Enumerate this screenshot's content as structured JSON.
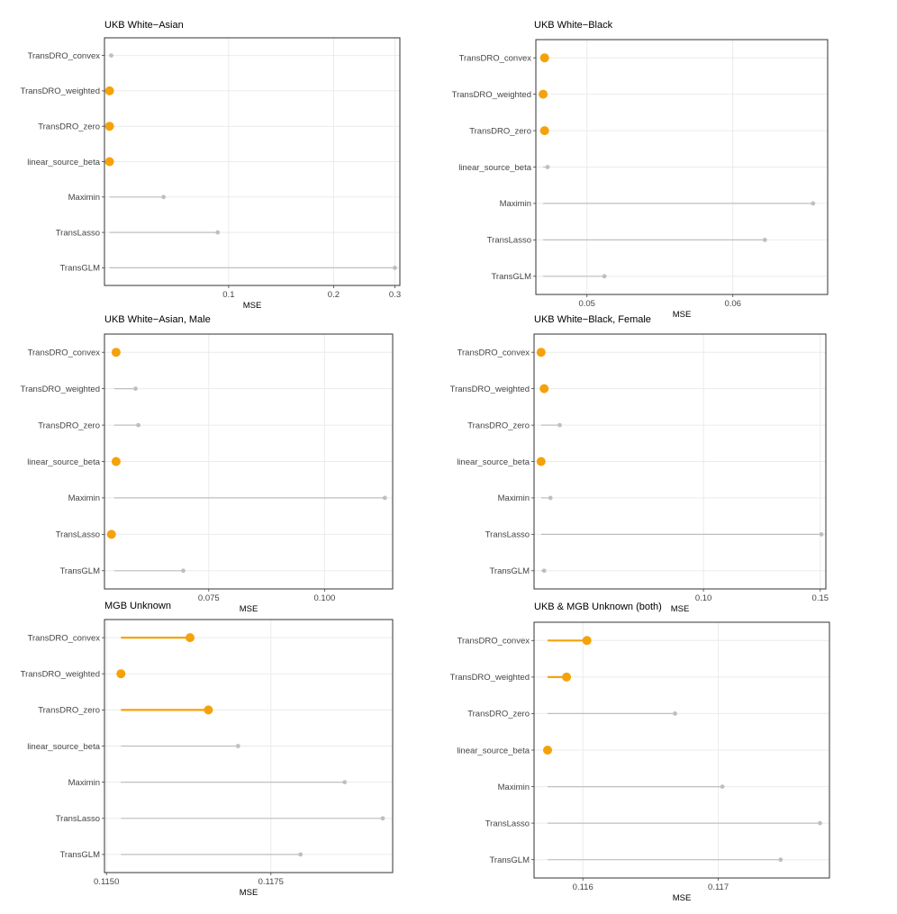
{
  "colors": {
    "highlight": "#f5a20a",
    "muted": "#bfbfbf",
    "grid": "#ebebeb",
    "frame": "#333333"
  },
  "chart_data": [
    {
      "type": "lollipop",
      "title": "UKB White−Asian",
      "xlabel": "MSE",
      "xscale": "log",
      "xlim": [
        0.044,
        0.31
      ],
      "xticks": [
        {
          "v": 0.1,
          "label": "0.1"
        },
        {
          "v": 0.2,
          "label": "0.2"
        },
        {
          "v": 0.3,
          "label": "0.3"
        }
      ],
      "baseline": 0.0455,
      "categories": [
        "TransDRO_convex",
        "TransDRO_weighted",
        "TransDRO_zero",
        "linear_source_beta",
        "Maximin",
        "TransLasso",
        "TransGLM"
      ],
      "values": [
        0.046,
        0.0455,
        0.0455,
        0.0455,
        0.065,
        0.093,
        0.3
      ],
      "highlight": [
        false,
        true,
        true,
        true,
        false,
        false,
        false
      ]
    },
    {
      "type": "lollipop",
      "title": "UKB White−Black",
      "xlabel": "MSE",
      "xscale": "linear",
      "xlim": [
        0.0465,
        0.0665
      ],
      "xticks": [
        {
          "v": 0.05,
          "label": "0.05"
        },
        {
          "v": 0.06,
          "label": "0.06"
        }
      ],
      "baseline": 0.047,
      "categories": [
        "TransDRO_convex",
        "TransDRO_weighted",
        "TransDRO_zero",
        "linear_source_beta",
        "Maximin",
        "TransLasso",
        "TransGLM"
      ],
      "values": [
        0.0471,
        0.047,
        0.0471,
        0.0473,
        0.0655,
        0.0622,
        0.0512
      ],
      "highlight": [
        true,
        true,
        true,
        false,
        false,
        false,
        false
      ]
    },
    {
      "type": "lollipop",
      "title": "UKB White−Asian, Male",
      "xlabel": "MSE",
      "xscale": "linear",
      "xlim": [
        0.0525,
        0.1147
      ],
      "xticks": [
        {
          "v": 0.075,
          "label": "0.075"
        },
        {
          "v": 0.1,
          "label": "0.100"
        }
      ],
      "baseline": 0.0546,
      "categories": [
        "TransDRO_convex",
        "TransDRO_weighted",
        "TransDRO_zero",
        "linear_source_beta",
        "Maximin",
        "TransLasso",
        "TransGLM"
      ],
      "values": [
        0.055,
        0.0592,
        0.0598,
        0.055,
        0.113,
        0.054,
        0.0695
      ],
      "highlight": [
        true,
        false,
        false,
        true,
        false,
        true,
        false
      ]
    },
    {
      "type": "lollipop",
      "title": "UKB White−Black, Female",
      "xlabel": "MSE",
      "xscale": "linear",
      "xlim": [
        0.0275,
        0.1524
      ],
      "xticks": [
        {
          "v": 0.1,
          "label": "0.10"
        },
        {
          "v": 0.15,
          "label": "0.15"
        }
      ],
      "baseline": 0.0305,
      "categories": [
        "TransDRO_convex",
        "TransDRO_weighted",
        "TransDRO_zero",
        "linear_source_beta",
        "Maximin",
        "TransLasso",
        "TransGLM"
      ],
      "values": [
        0.0305,
        0.0318,
        0.0385,
        0.0305,
        0.0345,
        0.1505,
        0.0318
      ],
      "highlight": [
        true,
        true,
        false,
        true,
        false,
        false,
        false
      ]
    },
    {
      "type": "lollipop",
      "title": "MGB Unknown",
      "xlabel": "MSE",
      "xscale": "linear",
      "xlim": [
        0.11497,
        0.11935
      ],
      "xticks": [
        {
          "v": 0.115,
          "label": "0.1150"
        },
        {
          "v": 0.1175,
          "label": "0.1175"
        }
      ],
      "baseline": 0.11522,
      "categories": [
        "TransDRO_convex",
        "TransDRO_weighted",
        "TransDRO_zero",
        "linear_source_beta",
        "Maximin",
        "TransLasso",
        "TransGLM"
      ],
      "values": [
        0.11627,
        0.11522,
        0.11655,
        0.117,
        0.11862,
        0.1192,
        0.11795
      ],
      "highlight": [
        true,
        true,
        true,
        false,
        false,
        false,
        false
      ]
    },
    {
      "type": "lollipop",
      "title": "UKB & MGB Unknown (both)",
      "xlabel": "MSE",
      "xscale": "linear",
      "xlim": [
        0.11564,
        0.11782
      ],
      "xticks": [
        {
          "v": 0.116,
          "label": "0.116"
        },
        {
          "v": 0.117,
          "label": "0.117"
        }
      ],
      "baseline": 0.11574,
      "categories": [
        "TransDRO_convex",
        "TransDRO_weighted",
        "TransDRO_zero",
        "linear_source_beta",
        "Maximin",
        "TransLasso",
        "TransGLM"
      ],
      "values": [
        0.11603,
        0.11588,
        0.11668,
        0.11574,
        0.11703,
        0.11775,
        0.11746
      ],
      "highlight": [
        true,
        true,
        false,
        true,
        false,
        false,
        false
      ]
    }
  ]
}
